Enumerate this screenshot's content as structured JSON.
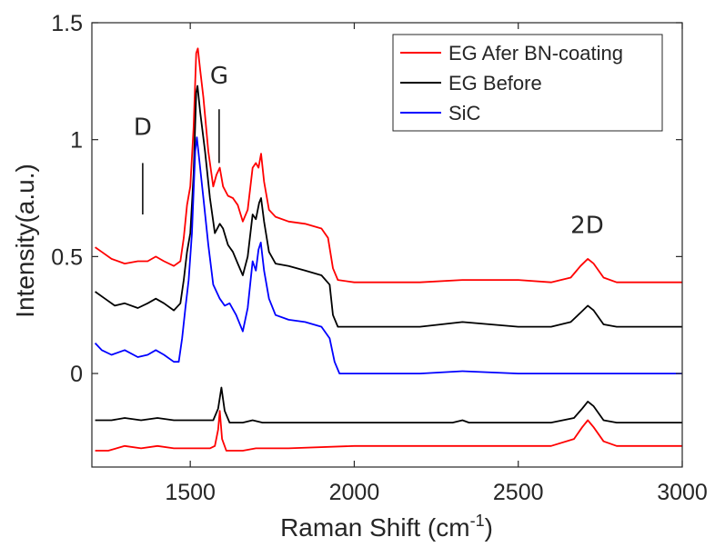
{
  "chart_data": {
    "type": "line",
    "xlabel": "Raman Shift (cm",
    "xlabel_sup": "-1",
    "xlabel_end": ")",
    "ylabel": "Intensity(a.u.)",
    "xlim": [
      1200,
      3000
    ],
    "ylim": [
      -0.4,
      1.5
    ],
    "x_ticks": [
      1500,
      2000,
      2500,
      3000
    ],
    "y_ticks": [
      0,
      0.5,
      1,
      1.5
    ],
    "x_tick_labels": [
      "1500",
      "2000",
      "2500",
      "3000"
    ],
    "y_tick_labels": [
      "0",
      "0.5",
      "1",
      "1.5"
    ],
    "grid": false,
    "legend_position": "top-right",
    "legend": [
      {
        "label": "EG Afer BN-coating",
        "color": "#ff0000"
      },
      {
        "label": "EG Before",
        "color": "#000000"
      },
      {
        "label": "SiC",
        "color": "#0000ff"
      }
    ],
    "annotations": [
      {
        "text": "D",
        "x": 1355,
        "y_text": 1.02,
        "line": [
          0.68,
          0.9
        ]
      },
      {
        "text": "G",
        "x": 1588,
        "y_text": 1.24,
        "line": [
          0.9,
          1.13
        ]
      },
      {
        "text": "2D",
        "x": 2710,
        "y_text": 0.6,
        "line": null
      }
    ],
    "series": [
      {
        "name": "EG Afer BN-coating",
        "color": "#ff0000",
        "points": [
          [
            1210,
            0.54
          ],
          [
            1230,
            0.52
          ],
          [
            1260,
            0.49
          ],
          [
            1300,
            0.47
          ],
          [
            1340,
            0.48
          ],
          [
            1370,
            0.48
          ],
          [
            1395,
            0.5
          ],
          [
            1420,
            0.48
          ],
          [
            1450,
            0.46
          ],
          [
            1470,
            0.48
          ],
          [
            1480,
            0.58
          ],
          [
            1490,
            0.72
          ],
          [
            1500,
            0.8
          ],
          [
            1510,
            1.05
          ],
          [
            1518,
            1.37
          ],
          [
            1523,
            1.39
          ],
          [
            1530,
            1.3
          ],
          [
            1540,
            1.18
          ],
          [
            1555,
            0.95
          ],
          [
            1570,
            0.8
          ],
          [
            1580,
            0.85
          ],
          [
            1590,
            0.88
          ],
          [
            1600,
            0.8
          ],
          [
            1615,
            0.76
          ],
          [
            1630,
            0.75
          ],
          [
            1645,
            0.72
          ],
          [
            1660,
            0.65
          ],
          [
            1675,
            0.7
          ],
          [
            1690,
            0.88
          ],
          [
            1700,
            0.9
          ],
          [
            1708,
            0.88
          ],
          [
            1716,
            0.94
          ],
          [
            1725,
            0.82
          ],
          [
            1740,
            0.7
          ],
          [
            1760,
            0.67
          ],
          [
            1800,
            0.65
          ],
          [
            1850,
            0.64
          ],
          [
            1900,
            0.62
          ],
          [
            1920,
            0.58
          ],
          [
            1935,
            0.45
          ],
          [
            1950,
            0.4
          ],
          [
            2000,
            0.39
          ],
          [
            2100,
            0.39
          ],
          [
            2200,
            0.39
          ],
          [
            2330,
            0.4
          ],
          [
            2500,
            0.4
          ],
          [
            2600,
            0.39
          ],
          [
            2660,
            0.41
          ],
          [
            2690,
            0.46
          ],
          [
            2712,
            0.49
          ],
          [
            2730,
            0.47
          ],
          [
            2760,
            0.41
          ],
          [
            2800,
            0.39
          ],
          [
            3000,
            0.39
          ]
        ]
      },
      {
        "name": "EG Before",
        "color": "#000000",
        "points": [
          [
            1210,
            0.35
          ],
          [
            1240,
            0.32
          ],
          [
            1270,
            0.29
          ],
          [
            1300,
            0.3
          ],
          [
            1340,
            0.28
          ],
          [
            1370,
            0.3
          ],
          [
            1395,
            0.32
          ],
          [
            1420,
            0.3
          ],
          [
            1450,
            0.27
          ],
          [
            1470,
            0.3
          ],
          [
            1480,
            0.4
          ],
          [
            1490,
            0.52
          ],
          [
            1500,
            0.6
          ],
          [
            1510,
            0.85
          ],
          [
            1518,
            1.2
          ],
          [
            1522,
            1.23
          ],
          [
            1530,
            1.12
          ],
          [
            1545,
            0.95
          ],
          [
            1560,
            0.75
          ],
          [
            1575,
            0.6
          ],
          [
            1590,
            0.64
          ],
          [
            1600,
            0.62
          ],
          [
            1615,
            0.55
          ],
          [
            1630,
            0.52
          ],
          [
            1645,
            0.47
          ],
          [
            1660,
            0.42
          ],
          [
            1675,
            0.5
          ],
          [
            1690,
            0.68
          ],
          [
            1700,
            0.66
          ],
          [
            1710,
            0.73
          ],
          [
            1716,
            0.75
          ],
          [
            1725,
            0.65
          ],
          [
            1740,
            0.52
          ],
          [
            1760,
            0.47
          ],
          [
            1800,
            0.46
          ],
          [
            1850,
            0.44
          ],
          [
            1900,
            0.42
          ],
          [
            1925,
            0.38
          ],
          [
            1935,
            0.25
          ],
          [
            1950,
            0.2
          ],
          [
            2000,
            0.2
          ],
          [
            2200,
            0.2
          ],
          [
            2330,
            0.22
          ],
          [
            2500,
            0.2
          ],
          [
            2600,
            0.2
          ],
          [
            2660,
            0.22
          ],
          [
            2690,
            0.26
          ],
          [
            2712,
            0.29
          ],
          [
            2730,
            0.27
          ],
          [
            2760,
            0.21
          ],
          [
            2800,
            0.2
          ],
          [
            3000,
            0.2
          ]
        ]
      },
      {
        "name": "SiC",
        "color": "#0000ff",
        "points": [
          [
            1210,
            0.13
          ],
          [
            1230,
            0.1
          ],
          [
            1260,
            0.08
          ],
          [
            1300,
            0.1
          ],
          [
            1340,
            0.07
          ],
          [
            1370,
            0.08
          ],
          [
            1395,
            0.1
          ],
          [
            1420,
            0.08
          ],
          [
            1450,
            0.05
          ],
          [
            1465,
            0.05
          ],
          [
            1475,
            0.15
          ],
          [
            1485,
            0.28
          ],
          [
            1495,
            0.4
          ],
          [
            1505,
            0.6
          ],
          [
            1515,
            0.95
          ],
          [
            1520,
            1.01
          ],
          [
            1527,
            0.92
          ],
          [
            1540,
            0.75
          ],
          [
            1555,
            0.55
          ],
          [
            1570,
            0.38
          ],
          [
            1590,
            0.32
          ],
          [
            1605,
            0.29
          ],
          [
            1620,
            0.3
          ],
          [
            1640,
            0.25
          ],
          [
            1660,
            0.18
          ],
          [
            1675,
            0.28
          ],
          [
            1690,
            0.48
          ],
          [
            1700,
            0.44
          ],
          [
            1708,
            0.53
          ],
          [
            1715,
            0.56
          ],
          [
            1725,
            0.44
          ],
          [
            1740,
            0.32
          ],
          [
            1760,
            0.25
          ],
          [
            1800,
            0.23
          ],
          [
            1850,
            0.22
          ],
          [
            1900,
            0.2
          ],
          [
            1925,
            0.15
          ],
          [
            1940,
            0.05
          ],
          [
            1955,
            0.0
          ],
          [
            2000,
            0.0
          ],
          [
            2200,
            0.0
          ],
          [
            2330,
            0.01
          ],
          [
            2500,
            0.0
          ],
          [
            3000,
            0.0
          ]
        ]
      },
      {
        "name": "",
        "color": "#000000",
        "points": [
          [
            1210,
            -0.2
          ],
          [
            1260,
            -0.2
          ],
          [
            1300,
            -0.19
          ],
          [
            1350,
            -0.2
          ],
          [
            1400,
            -0.19
          ],
          [
            1450,
            -0.2
          ],
          [
            1500,
            -0.2
          ],
          [
            1540,
            -0.2
          ],
          [
            1570,
            -0.2
          ],
          [
            1585,
            -0.15
          ],
          [
            1595,
            -0.06
          ],
          [
            1605,
            -0.16
          ],
          [
            1620,
            -0.21
          ],
          [
            1660,
            -0.21
          ],
          [
            1690,
            -0.2
          ],
          [
            1720,
            -0.21
          ],
          [
            1800,
            -0.21
          ],
          [
            2000,
            -0.21
          ],
          [
            2300,
            -0.21
          ],
          [
            2330,
            -0.2
          ],
          [
            2350,
            -0.21
          ],
          [
            2500,
            -0.21
          ],
          [
            2600,
            -0.21
          ],
          [
            2670,
            -0.19
          ],
          [
            2695,
            -0.15
          ],
          [
            2712,
            -0.12
          ],
          [
            2730,
            -0.14
          ],
          [
            2760,
            -0.2
          ],
          [
            2800,
            -0.21
          ],
          [
            3000,
            -0.21
          ]
        ]
      },
      {
        "name": "",
        "color": "#ff0000",
        "points": [
          [
            1210,
            -0.33
          ],
          [
            1250,
            -0.33
          ],
          [
            1300,
            -0.31
          ],
          [
            1350,
            -0.32
          ],
          [
            1400,
            -0.31
          ],
          [
            1450,
            -0.32
          ],
          [
            1500,
            -0.32
          ],
          [
            1560,
            -0.32
          ],
          [
            1575,
            -0.31
          ],
          [
            1585,
            -0.24
          ],
          [
            1590,
            -0.16
          ],
          [
            1597,
            -0.28
          ],
          [
            1610,
            -0.33
          ],
          [
            1660,
            -0.33
          ],
          [
            1700,
            -0.32
          ],
          [
            1800,
            -0.32
          ],
          [
            2000,
            -0.31
          ],
          [
            2200,
            -0.31
          ],
          [
            2400,
            -0.31
          ],
          [
            2600,
            -0.31
          ],
          [
            2670,
            -0.28
          ],
          [
            2695,
            -0.23
          ],
          [
            2712,
            -0.2
          ],
          [
            2730,
            -0.23
          ],
          [
            2760,
            -0.29
          ],
          [
            2800,
            -0.31
          ],
          [
            3000,
            -0.31
          ]
        ]
      }
    ]
  }
}
